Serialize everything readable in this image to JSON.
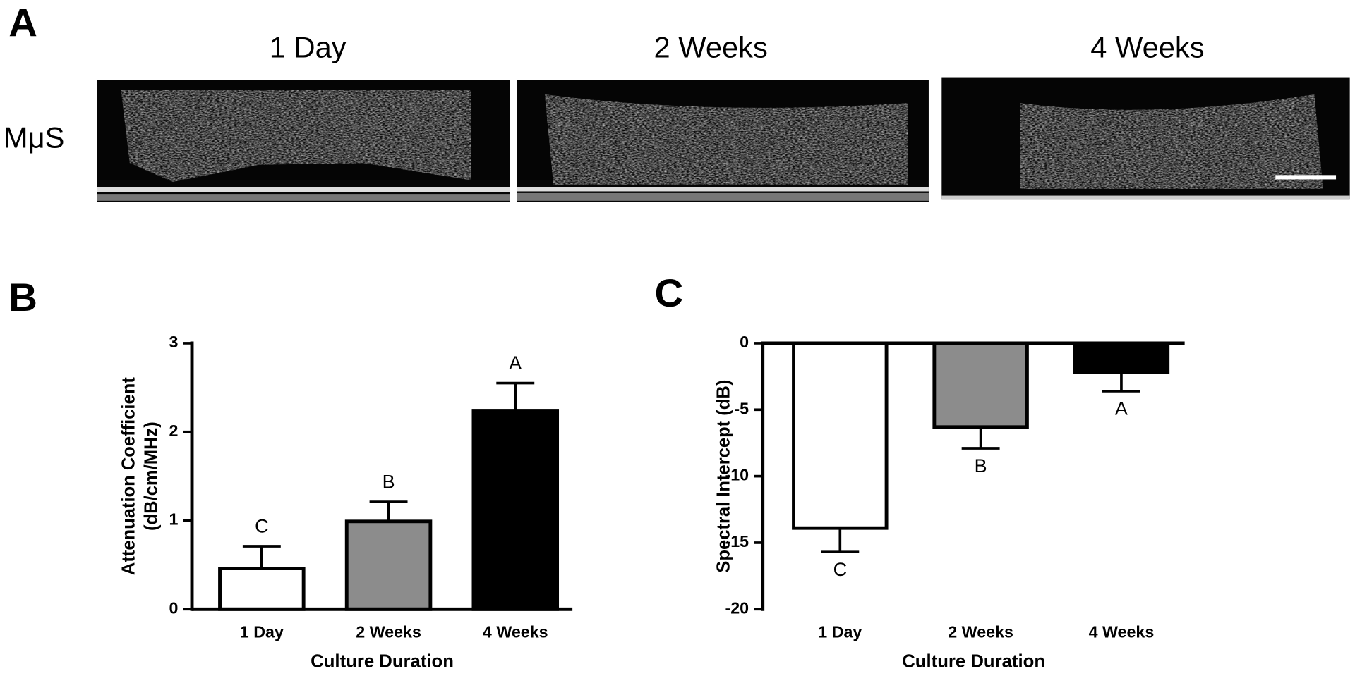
{
  "panel_a": {
    "label": "A",
    "titles": [
      "1 Day",
      "2 Weeks",
      "4 Weeks"
    ],
    "row_label": "MμS"
  },
  "chart_data": [
    {
      "type": "bar",
      "panel_label": "B",
      "categories": [
        "1 Day",
        "2 Weeks",
        "4 Weeks"
      ],
      "values": [
        0.46,
        0.99,
        2.24
      ],
      "errors": [
        0.25,
        0.22,
        0.31
      ],
      "annotations": [
        "C",
        "B",
        "A"
      ],
      "colors": [
        "#ffffff",
        "#8c8c8c",
        "#000000"
      ],
      "xlabel": "Culture Duration",
      "ylabel": [
        "Attenuation Coefficient",
        "(dB/cm/MHz)"
      ],
      "ylim": [
        0,
        3
      ],
      "yticks": [
        0,
        1,
        2,
        3
      ]
    },
    {
      "type": "bar",
      "panel_label": "C",
      "categories": [
        "1 Day",
        "2 Weeks",
        "4 Weeks"
      ],
      "values": [
        -13.9,
        -6.3,
        -2.2
      ],
      "errors": [
        1.8,
        1.6,
        1.4
      ],
      "annotations": [
        "C",
        "B",
        "A"
      ],
      "colors": [
        "#ffffff",
        "#8c8c8c",
        "#000000"
      ],
      "xlabel": "Culture Duration",
      "ylabel": [
        "Spectral Intercept  (dB)"
      ],
      "ylim": [
        -20,
        0
      ],
      "yticks": [
        0,
        -5,
        -10,
        -15,
        -20
      ]
    }
  ]
}
